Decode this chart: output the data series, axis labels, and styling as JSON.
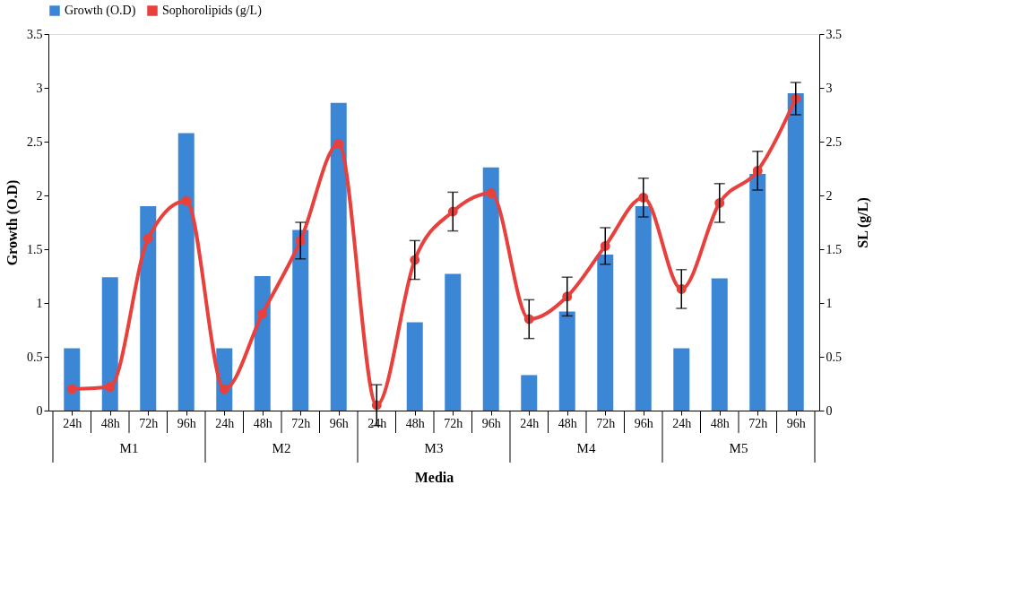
{
  "chart_data": {
    "type": "bar",
    "xlabel": "Media",
    "ylabel": "Growth (O.D)",
    "y2label": "SL (g/L)",
    "categories": [
      "24h",
      "48h",
      "72h",
      "96h",
      "24h",
      "48h",
      "72h",
      "96h",
      "24h",
      "48h",
      "72h",
      "96h",
      "24h",
      "48h",
      "72h",
      "96h",
      "24h",
      "48h",
      "72h",
      "96h"
    ],
    "annotations": [
      "M1",
      "M2",
      "M3",
      "M4",
      "M5"
    ],
    "series": [
      {
        "name": "Growth (O.D)",
        "color": "#3b87d6",
        "values": [
          0.58,
          1.24,
          1.9,
          2.58,
          0.58,
          1.25,
          1.68,
          2.86,
          0,
          0.82,
          1.27,
          2.26,
          0.33,
          0.92,
          1.45,
          1.9,
          0.58,
          1.23,
          2.2,
          2.95
        ]
      },
      {
        "name": "Sophorolipids (g/L)",
        "type": "line",
        "axis": "y2",
        "color": "#e8403c",
        "marker": "circle",
        "line_style": "solid",
        "values": [
          0.2,
          0.22,
          1.6,
          1.95,
          0.2,
          0.9,
          1.58,
          2.48,
          0.05,
          1.4,
          1.85,
          2.02,
          0.85,
          1.06,
          1.53,
          1.98,
          1.13,
          1.93,
          2.23,
          2.9
        ],
        "errors": [
          null,
          null,
          null,
          null,
          null,
          null,
          0.17,
          null,
          0.19,
          0.18,
          0.18,
          null,
          0.18,
          0.18,
          0.17,
          0.18,
          0.18,
          0.18,
          0.18,
          0.15
        ]
      }
    ],
    "ylim": [
      0,
      3.5
    ],
    "yticks": [
      0,
      0.5,
      1,
      1.5,
      2,
      2.5,
      3,
      3.5
    ],
    "y2lim": [
      0,
      3.5
    ],
    "y2ticks": [
      0,
      0.5,
      1,
      1.5,
      2,
      2.5,
      3,
      3.5
    ],
    "grid": false,
    "legend": "top"
  }
}
